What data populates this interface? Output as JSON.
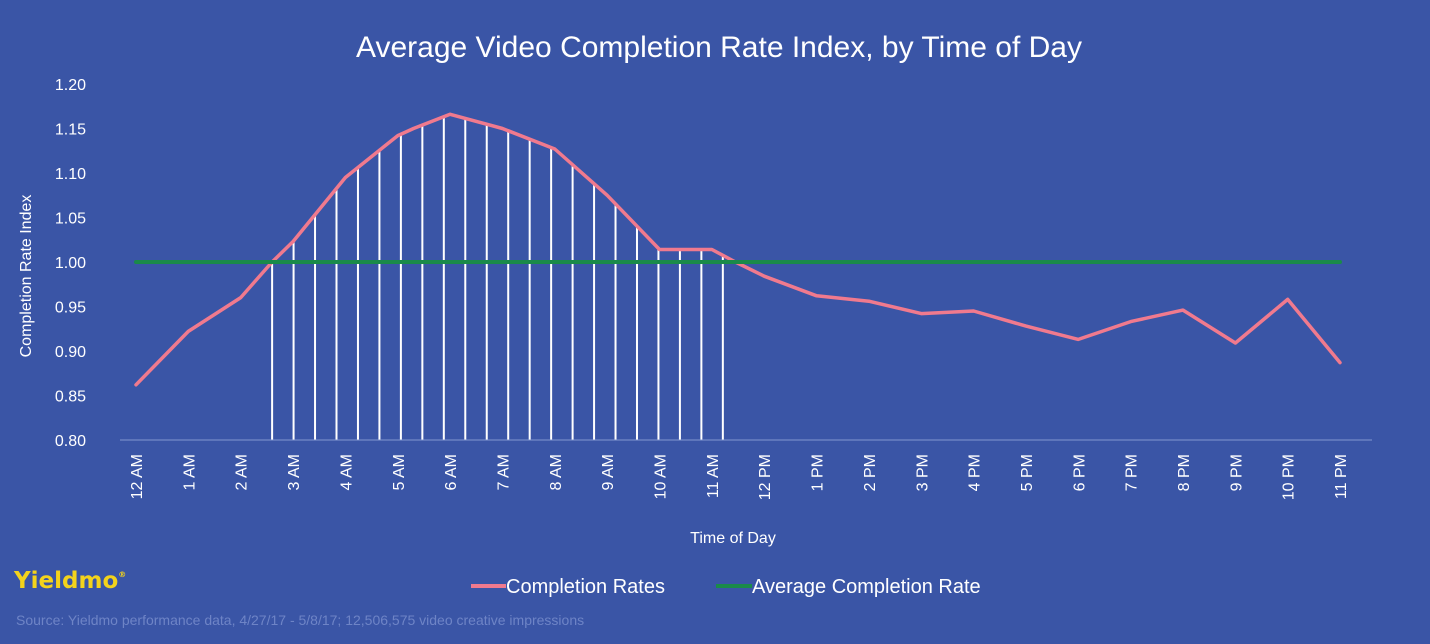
{
  "chart_data": {
    "type": "line",
    "title": "Average Video Completion Rate Index, by Time of Day",
    "xlabel": "Time of Day",
    "ylabel": "Completion Rate Index",
    "categories": [
      "12 AM",
      "1 AM",
      "2 AM",
      "3 AM",
      "4 AM",
      "5 AM",
      "6 AM",
      "7 AM",
      "8 AM",
      "9 AM",
      "10 AM",
      "11 AM",
      "12 PM",
      "1 PM",
      "2 PM",
      "3 PM",
      "4 PM",
      "5 PM",
      "6 PM",
      "7 PM",
      "8 PM",
      "9 PM",
      "10 PM",
      "11 PM"
    ],
    "ylim": [
      0.8,
      1.2
    ],
    "yticks": [
      "0.80",
      "0.85",
      "0.90",
      "0.95",
      "1.00",
      "1.05",
      "1.10",
      "1.15",
      "1.20"
    ],
    "series": [
      {
        "name": "Completion Rates",
        "color": "#f07a8e",
        "x": [
          0,
          1,
          2,
          2.6,
          3,
          4,
          5,
          5.3,
          6,
          7,
          8,
          9,
          10,
          10.6,
          11,
          11.45,
          12,
          13,
          14,
          15,
          16,
          17,
          18,
          19,
          20,
          21,
          22,
          23
        ],
        "values": [
          0.862,
          0.922,
          0.96,
          1.0,
          1.023,
          1.095,
          1.142,
          1.15,
          1.166,
          1.15,
          1.127,
          1.075,
          1.014,
          1.014,
          1.014,
          1.0,
          0.984,
          0.962,
          0.956,
          0.942,
          0.945,
          0.928,
          0.913,
          0.933,
          0.946,
          0.909,
          0.958,
          0.887
        ]
      },
      {
        "name": "Average Completion Rate",
        "color": "#1a8a4a",
        "x": [
          0,
          23
        ],
        "values": [
          1.0,
          1.0
        ]
      }
    ],
    "highlight_range": [
      2.6,
      11.45
    ],
    "highlight_hatch_spacing": 0.41,
    "legend": "bottom-center",
    "grid": false
  },
  "brand": {
    "name": "Yieldmo",
    "mark": "®"
  },
  "source": "Source: Yieldmo performance data, 4/27/17 - 5/8/17; 12,506,575 video creative impressions"
}
